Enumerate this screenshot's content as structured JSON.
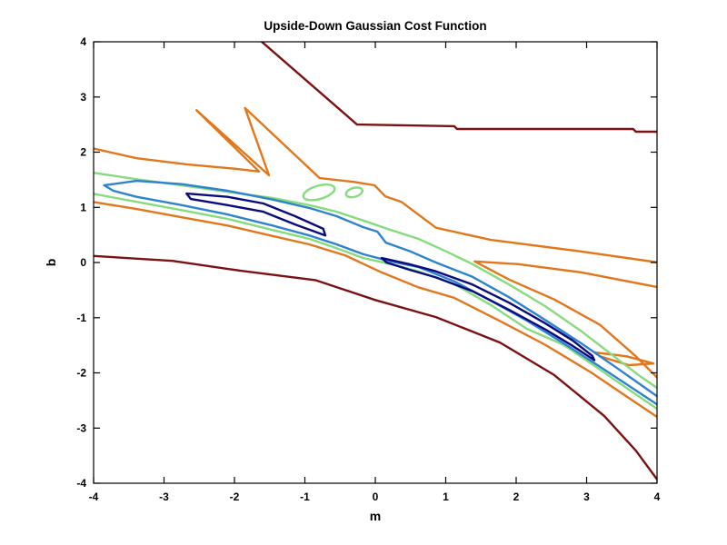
{
  "chart_data": {
    "type": "contour",
    "title": "Upside-Down Gaussian Cost Function",
    "xlabel": "m",
    "ylabel": "b",
    "xlim": [
      -4,
      4
    ],
    "ylim": [
      -4,
      4
    ],
    "xticks": [
      -4,
      -3,
      -2,
      -1,
      0,
      1,
      2,
      3,
      4
    ],
    "yticks": [
      -4,
      -3,
      -2,
      -1,
      0,
      1,
      2,
      3,
      4
    ],
    "grid": false,
    "legend": "none",
    "background": "#ffffff",
    "axis_color": "#000000",
    "tick_direction": "in",
    "levels": [
      {
        "name": "level-1-innermost",
        "color": "#0B0B80"
      },
      {
        "name": "level-2",
        "color": "#2E82CE"
      },
      {
        "name": "level-3",
        "color": "#85DB7D"
      },
      {
        "name": "level-4",
        "color": "#E2761B"
      },
      {
        "name": "level-5-outermost",
        "color": "#7B1113"
      }
    ],
    "contours": [
      {
        "id": "maroon-upper",
        "color": "#7B1113",
        "closed": false,
        "points": [
          [
            -1.63,
            4.02
          ],
          [
            -0.26,
            2.5
          ],
          [
            1.12,
            2.47
          ],
          [
            1.16,
            2.42
          ],
          [
            3.66,
            2.42
          ],
          [
            3.7,
            2.37
          ],
          [
            4.02,
            2.37
          ]
        ]
      },
      {
        "id": "maroon-lower",
        "color": "#7B1113",
        "closed": false,
        "points": [
          [
            -4.02,
            0.12
          ],
          [
            -2.88,
            0.03
          ],
          [
            -1.91,
            -0.15
          ],
          [
            -0.85,
            -0.32
          ],
          [
            0.0,
            -0.68
          ],
          [
            0.86,
            -0.99
          ],
          [
            1.77,
            -1.45
          ],
          [
            2.54,
            -2.04
          ],
          [
            3.25,
            -2.78
          ],
          [
            3.7,
            -3.41
          ],
          [
            4.03,
            -3.98
          ]
        ]
      },
      {
        "id": "orange-upper-spikes",
        "color": "#E2761B",
        "closed": false,
        "points": [
          [
            -4.02,
            2.07
          ],
          [
            -3.39,
            1.89
          ],
          [
            -2.68,
            1.78
          ],
          [
            -2.0,
            1.7
          ],
          [
            -1.65,
            1.65
          ],
          [
            -2.54,
            2.76
          ],
          [
            -1.51,
            1.58
          ],
          [
            -1.85,
            2.8
          ],
          [
            -0.79,
            1.53
          ],
          [
            -0.3,
            1.46
          ],
          [
            -0.01,
            1.4
          ],
          [
            0.14,
            1.2
          ],
          [
            0.37,
            1.1
          ],
          [
            0.86,
            0.63
          ],
          [
            1.64,
            0.41
          ],
          [
            2.93,
            0.2
          ],
          [
            4.02,
            0.0
          ]
        ]
      },
      {
        "id": "orange-right-fork",
        "color": "#E2761B",
        "closed": false,
        "points": [
          [
            4.02,
            -0.45
          ],
          [
            2.93,
            -0.18
          ],
          [
            2.03,
            -0.03
          ],
          [
            1.41,
            0.02
          ],
          [
            1.9,
            -0.31
          ],
          [
            2.54,
            -0.67
          ],
          [
            3.19,
            -1.13
          ],
          [
            3.7,
            -1.7
          ],
          [
            4.02,
            -2.11
          ]
        ]
      },
      {
        "id": "orange-lower-band",
        "color": "#E2761B",
        "closed": false,
        "points": [
          [
            -4.02,
            1.1
          ],
          [
            -3.39,
            0.97
          ],
          [
            -2.75,
            0.82
          ],
          [
            -2.1,
            0.67
          ],
          [
            -1.46,
            0.48
          ],
          [
            -0.94,
            0.33
          ],
          [
            -0.43,
            0.13
          ],
          [
            0.09,
            -0.18
          ],
          [
            0.61,
            -0.45
          ],
          [
            1.12,
            -0.64
          ],
          [
            1.77,
            -1.06
          ],
          [
            2.41,
            -1.49
          ],
          [
            3.06,
            -1.99
          ],
          [
            3.57,
            -2.43
          ],
          [
            4.05,
            -2.84
          ]
        ]
      },
      {
        "id": "orange-right-sliver",
        "color": "#E2761B",
        "closed": true,
        "points": [
          [
            3.12,
            -1.63
          ],
          [
            3.57,
            -1.7
          ],
          [
            3.95,
            -1.83
          ],
          [
            3.6,
            -1.86
          ],
          [
            3.19,
            -1.7
          ]
        ]
      },
      {
        "id": "green-band",
        "color": "#85DB7D",
        "closed": false,
        "points": [
          [
            -4.02,
            1.63
          ],
          [
            -3.39,
            1.51
          ],
          [
            -2.75,
            1.4
          ],
          [
            -2.1,
            1.28
          ],
          [
            -1.46,
            1.17
          ],
          [
            -0.94,
            1.04
          ],
          [
            -0.55,
            0.92
          ],
          [
            -0.17,
            0.76
          ],
          [
            0.22,
            0.59
          ],
          [
            0.61,
            0.43
          ],
          [
            0.99,
            0.21
          ],
          [
            1.38,
            -0.03
          ],
          [
            1.9,
            -0.4
          ],
          [
            2.41,
            -0.79
          ],
          [
            2.93,
            -1.25
          ],
          [
            3.45,
            -1.76
          ],
          [
            3.77,
            -2.07
          ],
          [
            4.09,
            -2.35
          ],
          [
            4.09,
            -2.73
          ],
          [
            3.7,
            -2.39
          ],
          [
            3.19,
            -1.94
          ],
          [
            2.67,
            -1.49
          ],
          [
            2.15,
            -1.2
          ],
          [
            1.64,
            -0.77
          ],
          [
            1.12,
            -0.39
          ],
          [
            0.61,
            -0.16
          ],
          [
            0.22,
            -0.03
          ],
          [
            -0.17,
            0.08
          ],
          [
            -0.55,
            0.26
          ],
          [
            -0.94,
            0.43
          ],
          [
            -1.46,
            0.59
          ],
          [
            -2.1,
            0.79
          ],
          [
            -2.75,
            0.95
          ],
          [
            -3.39,
            1.1
          ],
          [
            -4.02,
            1.25
          ]
        ]
      },
      {
        "id": "blue-band",
        "color": "#2E82CE",
        "closed": true,
        "points": [
          [
            -3.85,
            1.4
          ],
          [
            -3.39,
            1.48
          ],
          [
            -2.75,
            1.42
          ],
          [
            -2.1,
            1.3
          ],
          [
            -1.46,
            1.14
          ],
          [
            -0.94,
            0.99
          ],
          [
            -0.55,
            0.84
          ],
          [
            -0.17,
            0.64
          ],
          [
            0.03,
            0.56
          ],
          [
            0.15,
            0.36
          ],
          [
            0.48,
            0.21
          ],
          [
            0.86,
            0.0
          ],
          [
            1.38,
            -0.26
          ],
          [
            1.9,
            -0.63
          ],
          [
            2.41,
            -1.04
          ],
          [
            2.93,
            -1.47
          ],
          [
            3.45,
            -1.93
          ],
          [
            3.83,
            -2.27
          ],
          [
            4.13,
            -2.54
          ],
          [
            4.13,
            -2.68
          ],
          [
            3.7,
            -2.32
          ],
          [
            3.19,
            -1.89
          ],
          [
            2.67,
            -1.46
          ],
          [
            2.15,
            -1.05
          ],
          [
            1.64,
            -0.69
          ],
          [
            1.12,
            -0.34
          ],
          [
            0.61,
            -0.08
          ],
          [
            0.22,
            0.02
          ],
          [
            -0.17,
            0.15
          ],
          [
            -0.55,
            0.33
          ],
          [
            -0.94,
            0.49
          ],
          [
            -1.46,
            0.67
          ],
          [
            -2.1,
            0.87
          ],
          [
            -2.75,
            1.04
          ],
          [
            -3.39,
            1.19
          ],
          [
            -3.72,
            1.3
          ]
        ]
      },
      {
        "id": "navy-left-ellipse",
        "color": "#0B0B80",
        "closed": true,
        "points": [
          [
            -2.68,
            1.25
          ],
          [
            -2.1,
            1.19
          ],
          [
            -1.59,
            1.07
          ],
          [
            -1.14,
            0.84
          ],
          [
            -0.74,
            0.61
          ],
          [
            -0.71,
            0.49
          ],
          [
            -1.14,
            0.69
          ],
          [
            -1.59,
            0.92
          ],
          [
            -2.1,
            1.04
          ],
          [
            -2.62,
            1.15
          ]
        ]
      },
      {
        "id": "navy-right-ellipse",
        "color": "#0B0B80",
        "closed": true,
        "points": [
          [
            0.09,
            0.08
          ],
          [
            0.48,
            -0.03
          ],
          [
            0.86,
            -0.16
          ],
          [
            1.38,
            -0.4
          ],
          [
            1.9,
            -0.73
          ],
          [
            2.41,
            -1.1
          ],
          [
            2.8,
            -1.41
          ],
          [
            3.08,
            -1.69
          ],
          [
            3.11,
            -1.77
          ],
          [
            2.8,
            -1.51
          ],
          [
            2.41,
            -1.21
          ],
          [
            1.9,
            -0.86
          ],
          [
            1.38,
            -0.52
          ],
          [
            0.86,
            -0.27
          ],
          [
            0.48,
            -0.13
          ],
          [
            0.16,
            0.0
          ]
        ]
      }
    ],
    "ellipses": [
      {
        "id": "green-mini-ellipse-left",
        "color": "#85DB7D",
        "cx": -0.8,
        "cy": 1.27,
        "rx": 0.23,
        "ry": 0.12,
        "rotation": -16
      },
      {
        "id": "green-mini-ellipse-right",
        "color": "#85DB7D",
        "cx": -0.3,
        "cy": 1.27,
        "rx": 0.12,
        "ry": 0.08,
        "rotation": -16
      }
    ]
  }
}
